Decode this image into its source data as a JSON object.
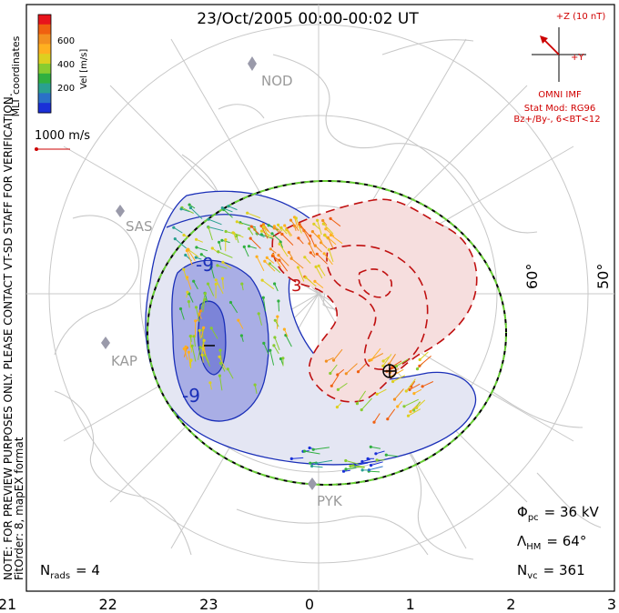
{
  "title": "23/Oct/2005 00:00-00:02 UT",
  "side_note": {
    "line1": "NOTE: FOR PREVIEW PURPOSES ONLY. PLEASE CONTACT VT-SD STAFF FOR VERIFICATION.",
    "line2": "FitOrder: 8, mapEX format"
  },
  "coord_label": "MLT coordinates",
  "velocity_scale": {
    "title": "Vel [m/s]",
    "ticks": [
      "600",
      "400",
      "200"
    ],
    "colors": [
      "#e8141c",
      "#f06010",
      "#f39020",
      "#ffb020",
      "#ddd020",
      "#88cc30",
      "#30b040",
      "#2aa090",
      "#2a70c8",
      "#1a30d8"
    ]
  },
  "reference_vector": {
    "label": "1000 m/s",
    "color": "#cc0000"
  },
  "imf": {
    "z_label": "+Z (10 nT)",
    "y_label": "+Y",
    "omni": "OMNI IMF",
    "model": "Stat Mod: RG96",
    "condition": "Bz+/By-, 6<BT<12",
    "color": "#cc0000"
  },
  "stations": [
    "NOD",
    "SAS",
    "KAP",
    "PYK"
  ],
  "lat_labels": [
    "60°",
    "50°"
  ],
  "mlt_axis": [
    "21",
    "22",
    "23",
    "0",
    "1",
    "2",
    "3"
  ],
  "contour_labels": {
    "neg1": "-9",
    "neg2": "-9",
    "pos": "3"
  },
  "stats": {
    "phi_pc": {
      "sym": "Φ",
      "sub": "pc",
      "value": "= 36 kV"
    },
    "lambda_hm": {
      "sym": "Λ",
      "sub": "HM",
      "value": "= 64°"
    },
    "n_vc": {
      "sym": "N",
      "sub": "vc",
      "value": "= 361"
    },
    "n_rads": {
      "sym": "N",
      "sub": "rads",
      "value": "= 4"
    }
  },
  "colors": {
    "negative_cell": "#2a3cc8",
    "positive_cell": "#cc1010",
    "boundary_dash": "#66cc33"
  }
}
